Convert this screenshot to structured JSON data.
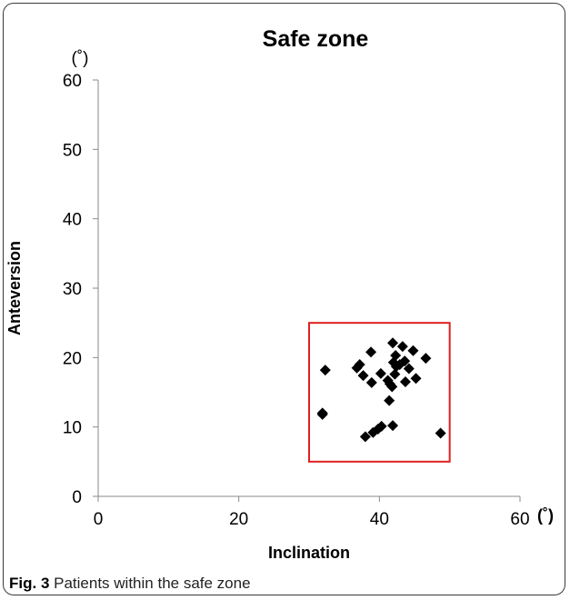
{
  "chart_data": {
    "type": "scatter",
    "title": "Safe zone",
    "xlabel": "Inclination",
    "ylabel": "Anteversion",
    "x_unit": "(˚)",
    "y_unit": "(˚)",
    "xlim": [
      0,
      60
    ],
    "ylim": [
      0,
      60
    ],
    "x_ticks": [
      0,
      20,
      40,
      60
    ],
    "y_ticks": [
      0,
      10,
      20,
      30,
      40,
      50,
      60
    ],
    "grid": false,
    "marker": "diamond",
    "marker_color": "#000000",
    "safe_zone": {
      "x": [
        30,
        50
      ],
      "y": [
        5,
        25
      ],
      "color": "#e02020"
    },
    "points": [
      [
        32.3,
        18.2
      ],
      [
        31.9,
        12.0
      ],
      [
        31.9,
        11.8
      ],
      [
        36.8,
        18.5
      ],
      [
        37.2,
        19.0
      ],
      [
        37.7,
        17.4
      ],
      [
        38.0,
        8.6
      ],
      [
        38.8,
        20.8
      ],
      [
        38.9,
        16.4
      ],
      [
        39.1,
        9.2
      ],
      [
        39.8,
        9.7
      ],
      [
        40.2,
        17.7
      ],
      [
        40.3,
        10.1
      ],
      [
        41.2,
        16.7
      ],
      [
        41.4,
        13.8
      ],
      [
        41.5,
        16.2
      ],
      [
        41.9,
        22.1
      ],
      [
        41.8,
        15.8
      ],
      [
        41.9,
        10.2
      ],
      [
        42.0,
        19.3
      ],
      [
        42.3,
        20.3
      ],
      [
        42.4,
        18.7
      ],
      [
        42.2,
        17.6
      ],
      [
        42.9,
        19.0
      ],
      [
        43.3,
        21.6
      ],
      [
        43.6,
        19.5
      ],
      [
        43.7,
        16.5
      ],
      [
        44.2,
        18.4
      ],
      [
        44.8,
        21.0
      ],
      [
        45.2,
        17.0
      ],
      [
        46.6,
        19.9
      ],
      [
        48.7,
        9.1
      ]
    ]
  },
  "caption": {
    "label": "Fig. 3",
    "text": " Patients within the safe zone"
  }
}
